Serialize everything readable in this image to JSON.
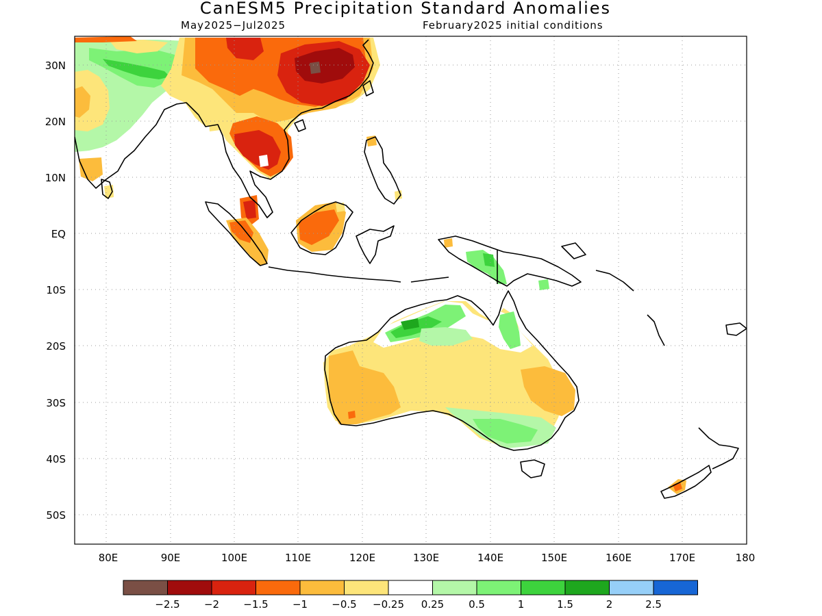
{
  "title": "CanESM5 Precipitation Standard Anomalies",
  "subtitle_left": "May2025−Jul2025",
  "subtitle_right": "February2025 initial conditions",
  "axes": {
    "lon_labels": [
      "80E",
      "90E",
      "100E",
      "110E",
      "120E",
      "130E",
      "140E",
      "150E",
      "160E",
      "170E",
      "180"
    ],
    "lat_labels": [
      "30N",
      "20N",
      "10N",
      "EQ",
      "10S",
      "20S",
      "30S",
      "40S",
      "50S"
    ],
    "lon_range": [
      75,
      180
    ],
    "lat_range": [
      -55,
      35
    ],
    "grid": "dotted"
  },
  "legend": {
    "placement": "bottom",
    "colors": [
      "#7a4f45",
      "#a00c0c",
      "#d9230f",
      "#fa6a0c",
      "#fcbc3c",
      "#fde57a",
      "#ffffff",
      "#b4f7a8",
      "#7df276",
      "#3dd33d",
      "#1ea71e",
      "#96cff8",
      "#1766d5"
    ],
    "labels": [
      "−2.5",
      "−2",
      "−1.5",
      "−1",
      "−0.5",
      "−0.25",
      "0.25",
      "0.5",
      "1",
      "1.5",
      "2",
      "2.5"
    ]
  }
}
